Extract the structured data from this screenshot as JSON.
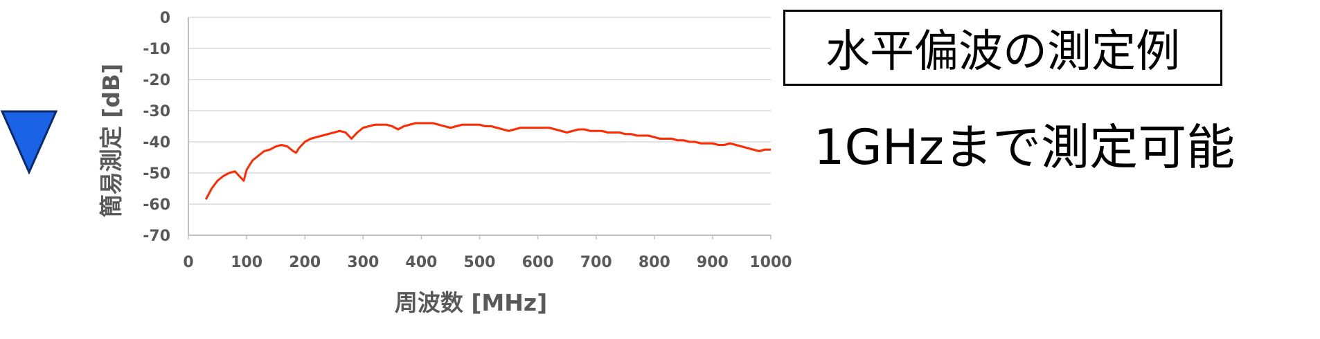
{
  "chart_data": {
    "type": "line",
    "title": "",
    "xlabel": "周波数 [MHz]",
    "ylabel": "簡易測定 [dB]",
    "xlim": [
      0,
      1000
    ],
    "ylim": [
      -70,
      0
    ],
    "x_ticks": [
      "0",
      "100",
      "200",
      "300",
      "400",
      "500",
      "600",
      "700",
      "800",
      "900",
      "1000"
    ],
    "y_ticks": [
      "0",
      "-10",
      "-20",
      "-30",
      "-40",
      "-50",
      "-60",
      "-70"
    ],
    "grid": true,
    "legend": "none",
    "series": [
      {
        "color": "#ff2a00",
        "x": [
          30,
          40,
          50,
          60,
          70,
          80,
          90,
          95,
          100,
          110,
          120,
          130,
          140,
          150,
          160,
          170,
          180,
          185,
          190,
          200,
          210,
          220,
          230,
          240,
          250,
          260,
          270,
          280,
          290,
          300,
          310,
          320,
          330,
          340,
          350,
          360,
          370,
          380,
          390,
          400,
          410,
          420,
          430,
          440,
          450,
          460,
          470,
          480,
          490,
          500,
          510,
          520,
          530,
          540,
          550,
          560,
          570,
          580,
          590,
          600,
          610,
          620,
          630,
          640,
          650,
          660,
          670,
          680,
          690,
          700,
          710,
          720,
          730,
          740,
          750,
          760,
          770,
          780,
          790,
          800,
          810,
          820,
          830,
          840,
          850,
          860,
          870,
          880,
          890,
          900,
          910,
          920,
          930,
          940,
          950,
          960,
          970,
          980,
          990,
          1000
        ],
        "y": [
          -58.5,
          -55,
          -52.5,
          -51,
          -50,
          -49.5,
          -51.5,
          -52.5,
          -49,
          -46,
          -44.5,
          -43,
          -42.5,
          -41.5,
          -41,
          -41.5,
          -43,
          -43.5,
          -42,
          -40,
          -39,
          -38.5,
          -38,
          -37.5,
          -37,
          -36.5,
          -37,
          -39,
          -37,
          -35.5,
          -35,
          -34.5,
          -34.5,
          -34.5,
          -35,
          -36,
          -35,
          -34.5,
          -34,
          -34,
          -34,
          -34,
          -34.5,
          -35,
          -35.5,
          -35,
          -34.5,
          -34.5,
          -34.5,
          -34.5,
          -35,
          -35,
          -35.5,
          -36,
          -36.5,
          -36,
          -35.5,
          -35.5,
          -35.5,
          -35.5,
          -35.5,
          -35.5,
          -36,
          -36.5,
          -37,
          -36.5,
          -36,
          -36,
          -36.5,
          -36.5,
          -36.5,
          -37,
          -37,
          -37,
          -37.5,
          -37.5,
          -38,
          -38,
          -38,
          -38.5,
          -39,
          -39,
          -39,
          -39.5,
          -39.5,
          -40,
          -40,
          -40.5,
          -40.5,
          -40.5,
          -41,
          -41,
          -40.5,
          -41,
          -41.5,
          -42,
          -42.5,
          -43,
          -42.5,
          -42.5
        ]
      }
    ]
  },
  "title_box": "水平偏波の測定例",
  "note": "1GHzまで測定可能",
  "marker": {
    "icon": "blue-down-triangle-icon",
    "fill": "#1a63e6",
    "stroke": "#0a2a6b"
  },
  "colors": {
    "grid": "#d9d9d9",
    "axis": "#bfbfbf",
    "text": "#595959"
  }
}
